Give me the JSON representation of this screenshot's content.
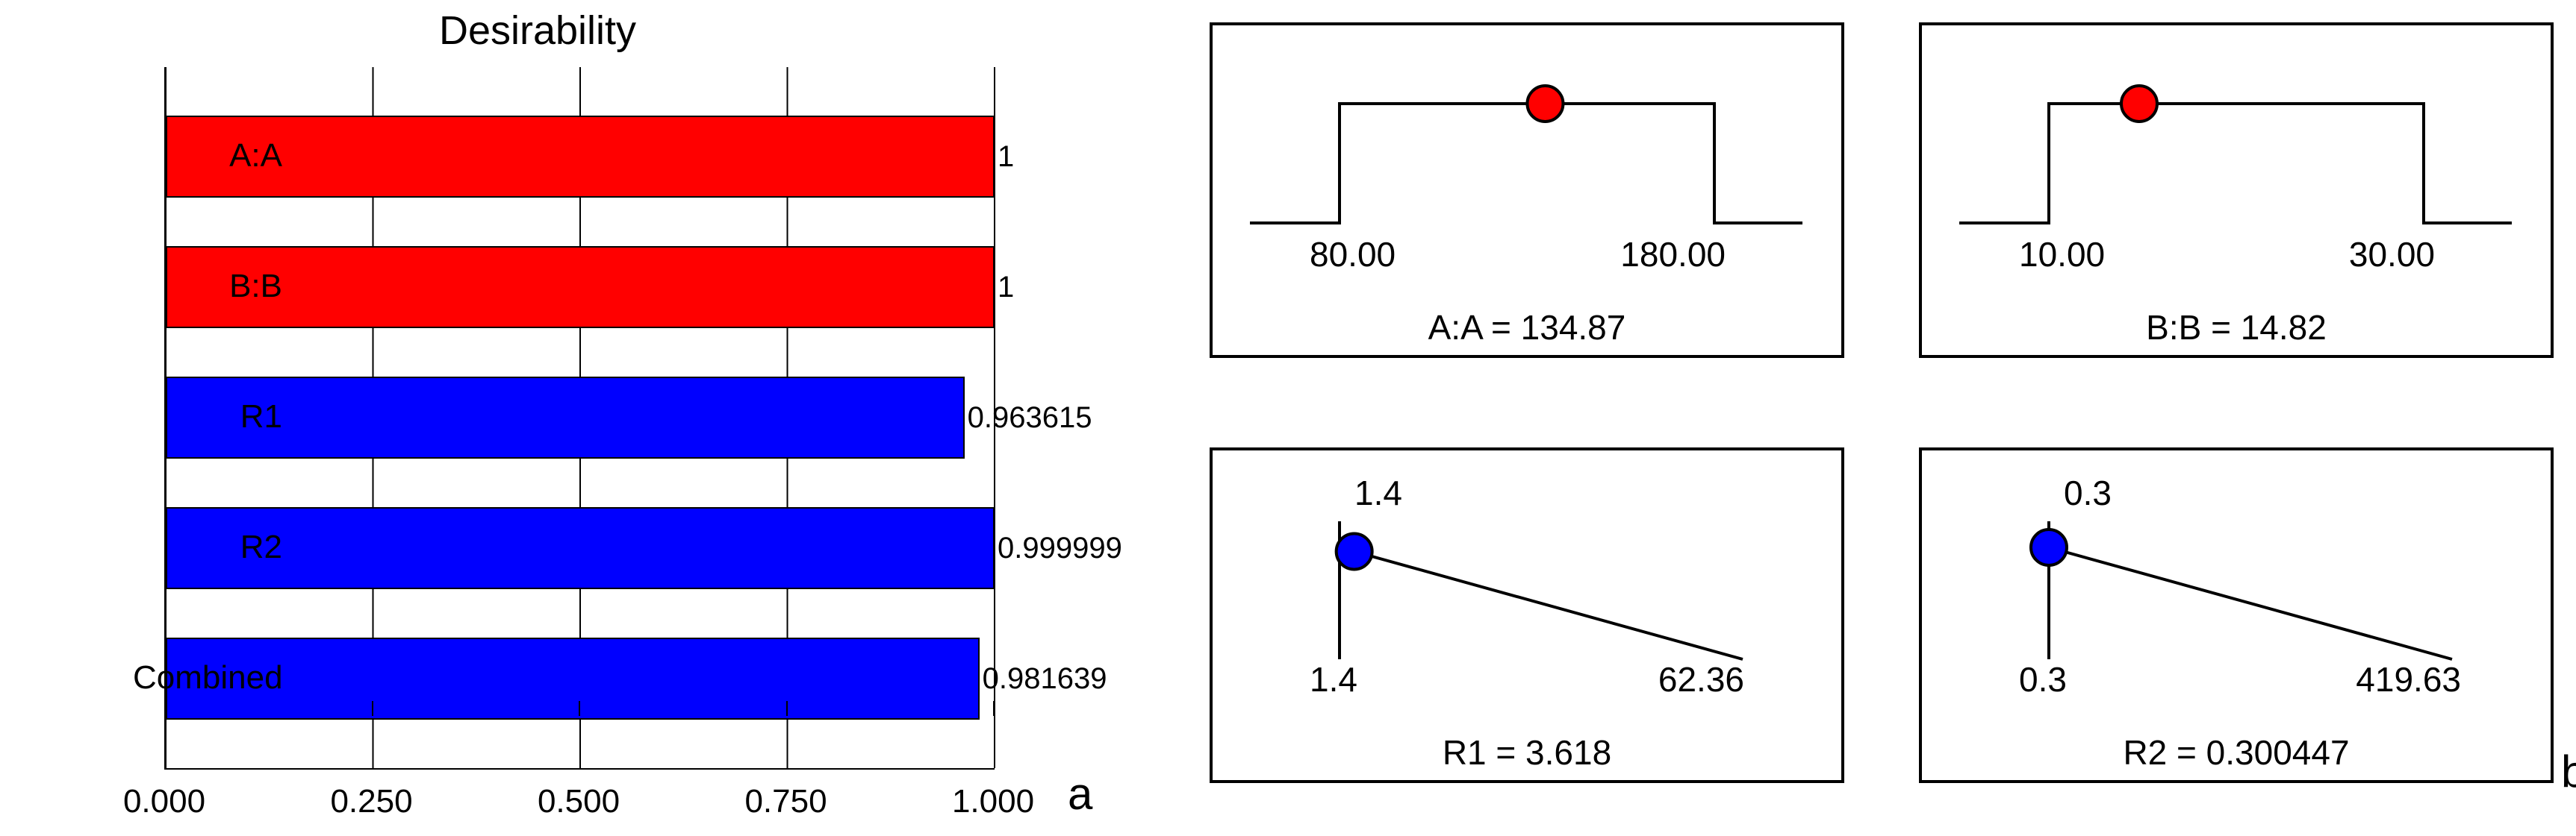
{
  "colors": {
    "red": "#ff0000",
    "blue": "#0000ff",
    "black": "#000000",
    "white": "#ffffff",
    "marker_border": "#000000"
  },
  "panel_a": {
    "title": "Desirability",
    "letter": "a",
    "x_ticks": [
      "0.000",
      "0.250",
      "0.500",
      "0.750",
      "1.000"
    ],
    "x_min": 0.0,
    "x_max": 1.0,
    "bars": [
      {
        "label": "A:A",
        "value": 1.0,
        "value_label": "1",
        "color": "#ff0000"
      },
      {
        "label": "B:B",
        "value": 1.0,
        "value_label": "1",
        "color": "#ff0000"
      },
      {
        "label": "R1",
        "value": 0.963615,
        "value_label": "0.963615",
        "color": "#0000ff"
      },
      {
        "label": "R2",
        "value": 0.999999,
        "value_label": "0.999999",
        "color": "#0000ff"
      },
      {
        "label": "Combined",
        "value": 0.981639,
        "value_label": "0.981639",
        "color": "#0000ff"
      }
    ]
  },
  "panel_b": {
    "letter": "b",
    "top_left": {
      "type": "ramp-factor",
      "low_label": "80.00",
      "high_label": "180.00",
      "low": 80.0,
      "high": 180.0,
      "marker_value": 134.87,
      "marker_color": "#ff0000",
      "caption_prefix": "A:A = ",
      "caption_value": "134.87"
    },
    "top_right": {
      "type": "ramp-factor",
      "low_label": "10.00",
      "high_label": "30.00",
      "low": 10.0,
      "high": 30.0,
      "marker_value": 14.82,
      "marker_color": "#ff0000",
      "caption_prefix": "B:B = ",
      "caption_value": "14.82"
    },
    "bottom_left": {
      "type": "ramp-response",
      "left_top_label": "1.4",
      "left_bottom_label": "1.4",
      "right_bottom_label": "62.36",
      "low": 1.4,
      "high": 62.36,
      "marker_value": 3.618,
      "marker_color": "#0000ff",
      "caption_prefix": "R1 = ",
      "caption_value": "3.618"
    },
    "bottom_right": {
      "type": "ramp-response",
      "left_top_label": "0.3",
      "left_bottom_label": "0.3",
      "right_bottom_label": "419.63",
      "low": 0.3,
      "high": 419.63,
      "marker_value": 0.300447,
      "marker_color": "#0000ff",
      "caption_prefix": "R2 = ",
      "caption_value": "0.300447"
    }
  },
  "style": {
    "marker_radius": 24,
    "marker_stroke_width": 4,
    "line_width": 4,
    "title_fontsize": 54,
    "label_fontsize": 44,
    "value_fontsize": 40,
    "caption_fontsize": 46,
    "letter_fontsize": 60
  }
}
